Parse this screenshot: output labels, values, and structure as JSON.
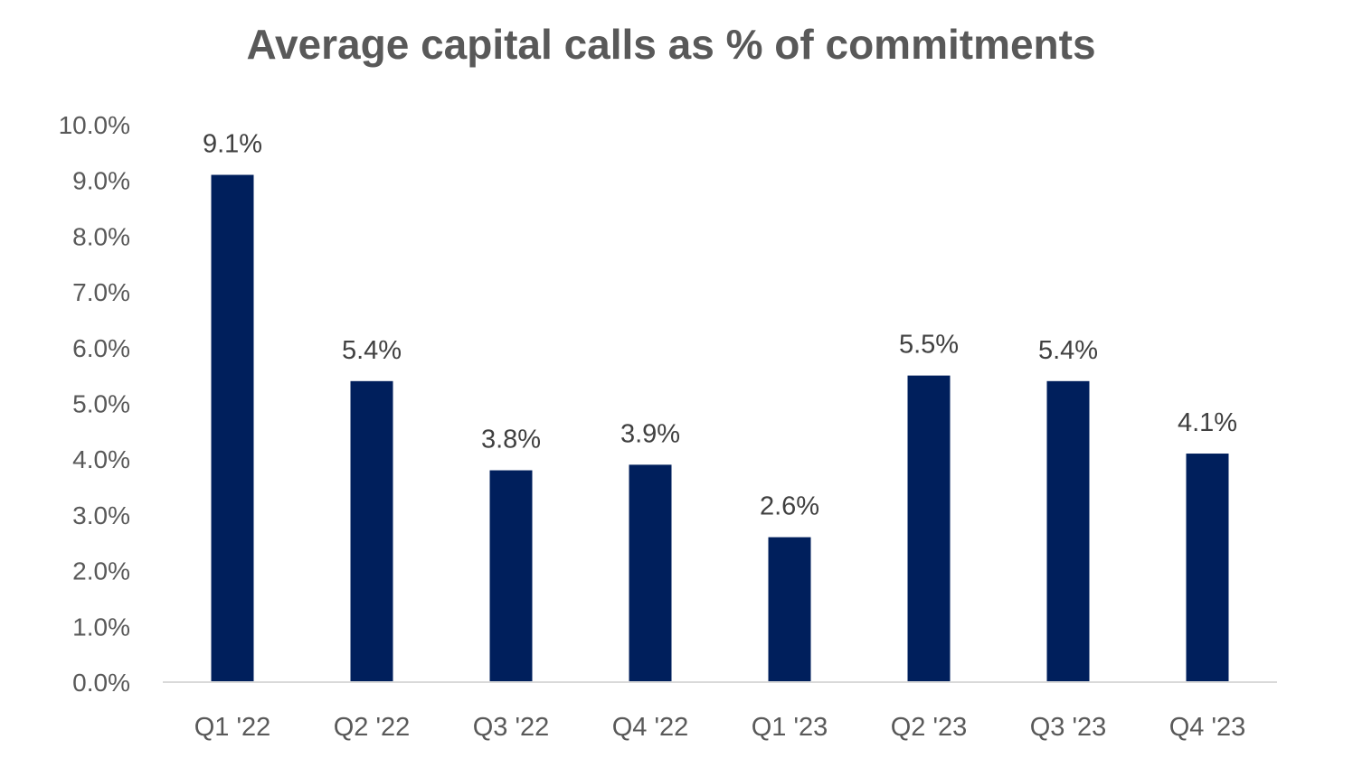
{
  "chart_data": {
    "type": "bar",
    "title": "Average capital calls as % of commitments",
    "xlabel": "",
    "ylabel": "",
    "categories": [
      "Q1 '22",
      "Q2 '22",
      "Q3 '22",
      "Q4 '22",
      "Q1 '23",
      "Q2 '23",
      "Q3 '23",
      "Q4 '23"
    ],
    "values": [
      9.1,
      5.4,
      3.8,
      3.9,
      2.6,
      5.5,
      5.4,
      4.1
    ],
    "data_labels": [
      "9.1%",
      "5.4%",
      "3.8%",
      "3.9%",
      "2.6%",
      "5.5%",
      "5.4%",
      "4.1%"
    ],
    "ylim": [
      0,
      10
    ],
    "y_ticks": [
      0,
      1,
      2,
      3,
      4,
      5,
      6,
      7,
      8,
      9,
      10
    ],
    "y_tick_labels": [
      "0.0%",
      "1.0%",
      "2.0%",
      "3.0%",
      "4.0%",
      "5.0%",
      "6.0%",
      "7.0%",
      "8.0%",
      "9.0%",
      "10.0%"
    ],
    "grid": false,
    "legend": "none",
    "colors": {
      "bar": "#001f5c",
      "axis_line": "#d9d9d9",
      "title": "#595959",
      "tick_text": "#595959",
      "label_text": "#404040"
    }
  }
}
